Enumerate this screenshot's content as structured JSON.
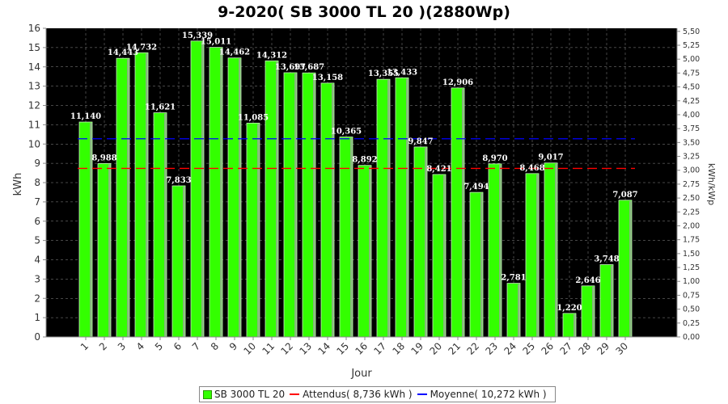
{
  "chart_data": {
    "type": "bar",
    "title": "9-2020( SB 3000 TL 20 )(2880Wp)",
    "xlabel": "Jour",
    "ylabel": "kWh",
    "y2label": "kWh/kWp",
    "ylim": [
      0,
      16
    ],
    "y2lim": [
      0,
      5.5556
    ],
    "yticks": [
      "0",
      "1",
      "2",
      "3",
      "4",
      "5",
      "6",
      "7",
      "8",
      "9",
      "10",
      "11",
      "12",
      "13",
      "14",
      "15",
      "16"
    ],
    "y2ticks": [
      "0,00",
      "0,25",
      "0,50",
      "0,75",
      "1,00",
      "1,25",
      "1,50",
      "1,75",
      "2,00",
      "2,25",
      "2,50",
      "2,75",
      "3,00",
      "3,25",
      "3,50",
      "3,75",
      "4,00",
      "4,25",
      "4,50",
      "4,75",
      "5,00",
      "5,25",
      "5,50"
    ],
    "categories": [
      "1",
      "2",
      "3",
      "4",
      "5",
      "6",
      "7",
      "8",
      "9",
      "10",
      "11",
      "12",
      "13",
      "14",
      "15",
      "16",
      "17",
      "18",
      "19",
      "20",
      "21",
      "22",
      "23",
      "24",
      "25",
      "26",
      "27",
      "28",
      "29",
      "30"
    ],
    "series": [
      {
        "name": "SB 3000 TL 20",
        "color": "#33ff00",
        "values": [
          11.14,
          8.988,
          14.443,
          14.732,
          11.621,
          7.833,
          15.339,
          15.011,
          14.462,
          11.085,
          14.312,
          13.697,
          13.687,
          13.158,
          10.365,
          8.892,
          13.355,
          13.433,
          9.847,
          8.421,
          12.906,
          7.494,
          8.97,
          2.781,
          8.468,
          9.017,
          1.22,
          2.646,
          3.748,
          7.087
        ],
        "labels": [
          "11,140",
          "8,988",
          "14,443",
          "14,732",
          "11,621",
          "7,833",
          "15,339",
          "15,011",
          "14,462",
          "11,085",
          "14,312",
          "13,697",
          "13,687",
          "13,158",
          "10,365",
          "8,892",
          "13,355",
          "13,433",
          "9,847",
          "8,421",
          "12,906",
          "7,494",
          "8,970",
          "2,781",
          "8,468",
          "9,017",
          "1,220",
          "2,646",
          "3,748",
          "7,087"
        ]
      }
    ],
    "reference_lines": [
      {
        "name": "Attendus( 8,736 kWh )",
        "value": 8.736,
        "color": "#ff0000"
      },
      {
        "name": "Moyenne( 10,272 kWh )",
        "value": 10.272,
        "color": "#0000ff"
      }
    ],
    "legend_position": "bottom",
    "background": "#000000",
    "grid": true
  }
}
